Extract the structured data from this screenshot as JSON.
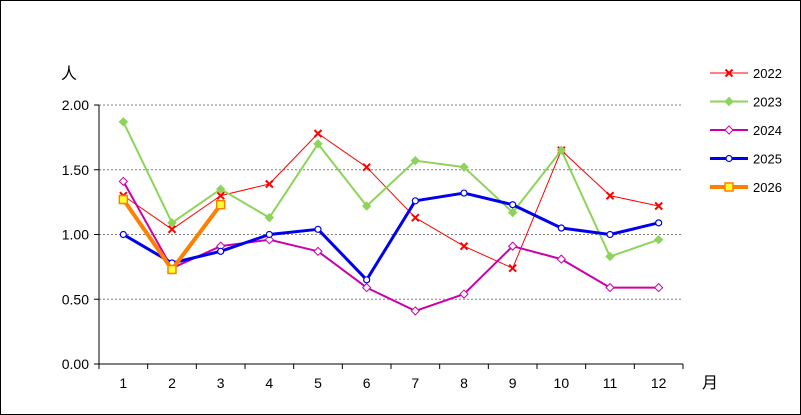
{
  "chart_data": {
    "type": "line",
    "ylabel": "人",
    "xlabel": "月",
    "ylim": [
      0,
      2
    ],
    "yticks": [
      "0.00",
      "0.50",
      "1.00",
      "1.50",
      "2.00"
    ],
    "categories": [
      "1",
      "2",
      "3",
      "4",
      "5",
      "6",
      "7",
      "8",
      "9",
      "10",
      "11",
      "12"
    ],
    "grid": "horizontal dashed",
    "legend_position": "right",
    "series": [
      {
        "name": "2022",
        "color": "#ff0000",
        "marker": "x",
        "values": [
          1.3,
          1.04,
          1.3,
          1.39,
          1.78,
          1.52,
          1.13,
          0.91,
          0.74,
          1.65,
          1.3,
          1.22
        ]
      },
      {
        "name": "2023",
        "color": "#8fd45a",
        "marker": "diamond",
        "values": [
          1.87,
          1.09,
          1.35,
          1.13,
          1.7,
          1.22,
          1.57,
          1.52,
          1.17,
          1.65,
          0.83,
          0.96
        ]
      },
      {
        "name": "2024",
        "color": "#cc00aa",
        "marker": "open-diamond",
        "values": [
          1.41,
          0.74,
          0.91,
          0.96,
          0.87,
          0.59,
          0.41,
          0.54,
          0.91,
          0.81,
          0.59,
          0.59
        ]
      },
      {
        "name": "2025",
        "color": "#0000ee",
        "marker": "circle",
        "values": [
          1.0,
          0.78,
          0.87,
          1.0,
          1.04,
          0.65,
          1.26,
          1.32,
          1.23,
          1.05,
          1.0,
          1.09
        ]
      },
      {
        "name": "2026",
        "color": "#ff8000",
        "marker": "square",
        "values": [
          1.27,
          0.73,
          1.23,
          null,
          null,
          null,
          null,
          null,
          null,
          null,
          null,
          null
        ]
      }
    ]
  }
}
